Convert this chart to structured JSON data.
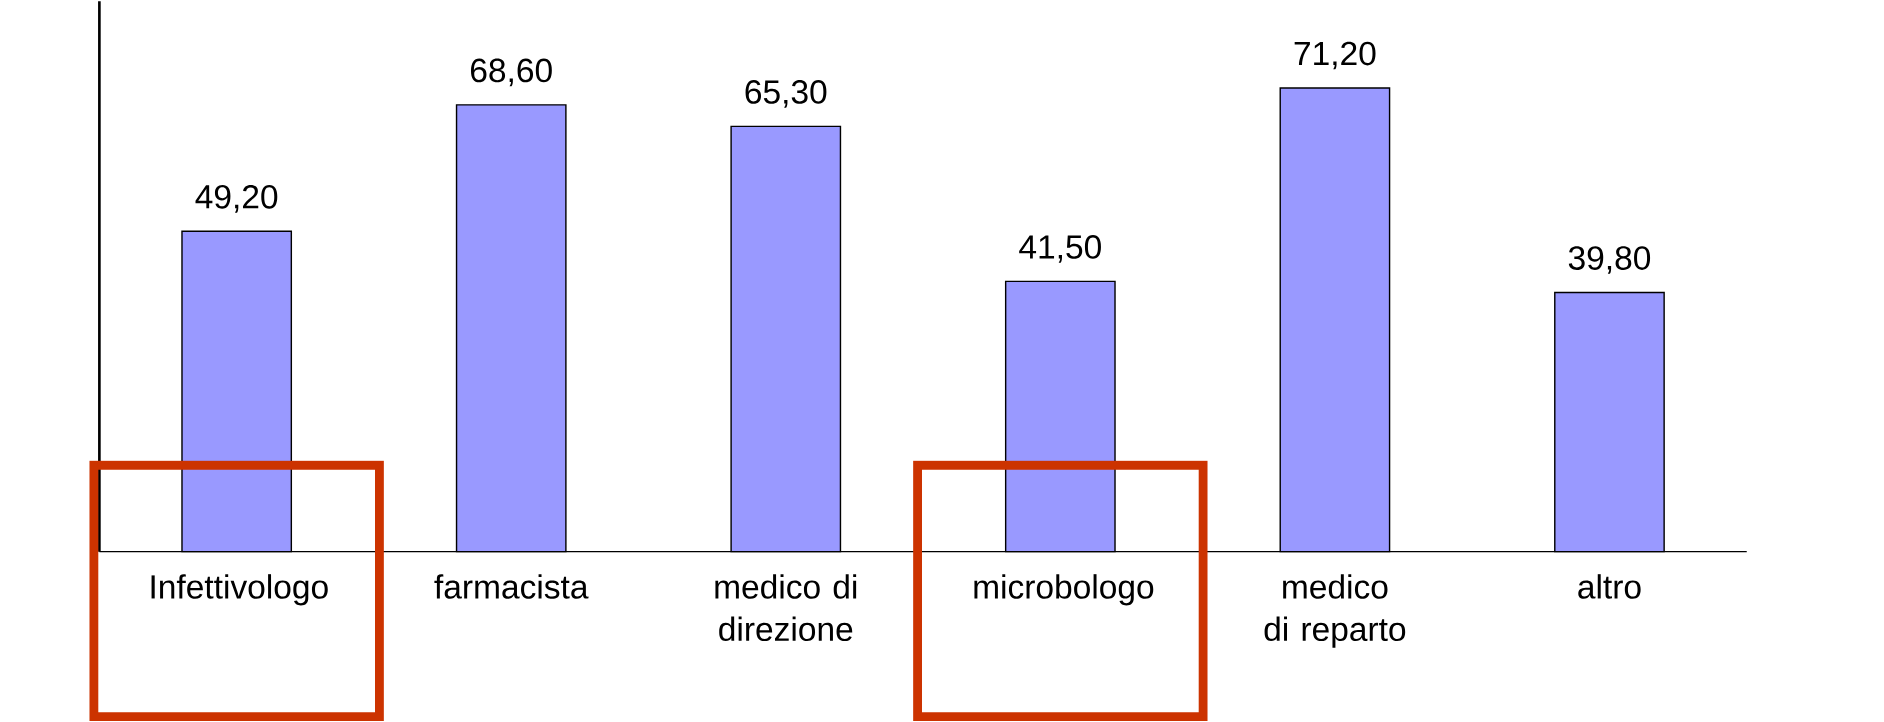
{
  "chart_data": {
    "type": "bar",
    "categories": [
      "Infettivologo",
      "farmacista",
      "medico di direzione",
      "microbologo",
      "medico di reparto",
      "altro"
    ],
    "values": [
      49.2,
      68.6,
      65.3,
      41.5,
      71.2,
      39.8
    ],
    "value_labels": [
      "49,20",
      "68,60",
      "65,30",
      "41,50",
      "71,20",
      "39,80"
    ],
    "color": "#9999ff",
    "ylim": [
      0,
      84.5
    ],
    "tick_labels": "x"
  }
}
